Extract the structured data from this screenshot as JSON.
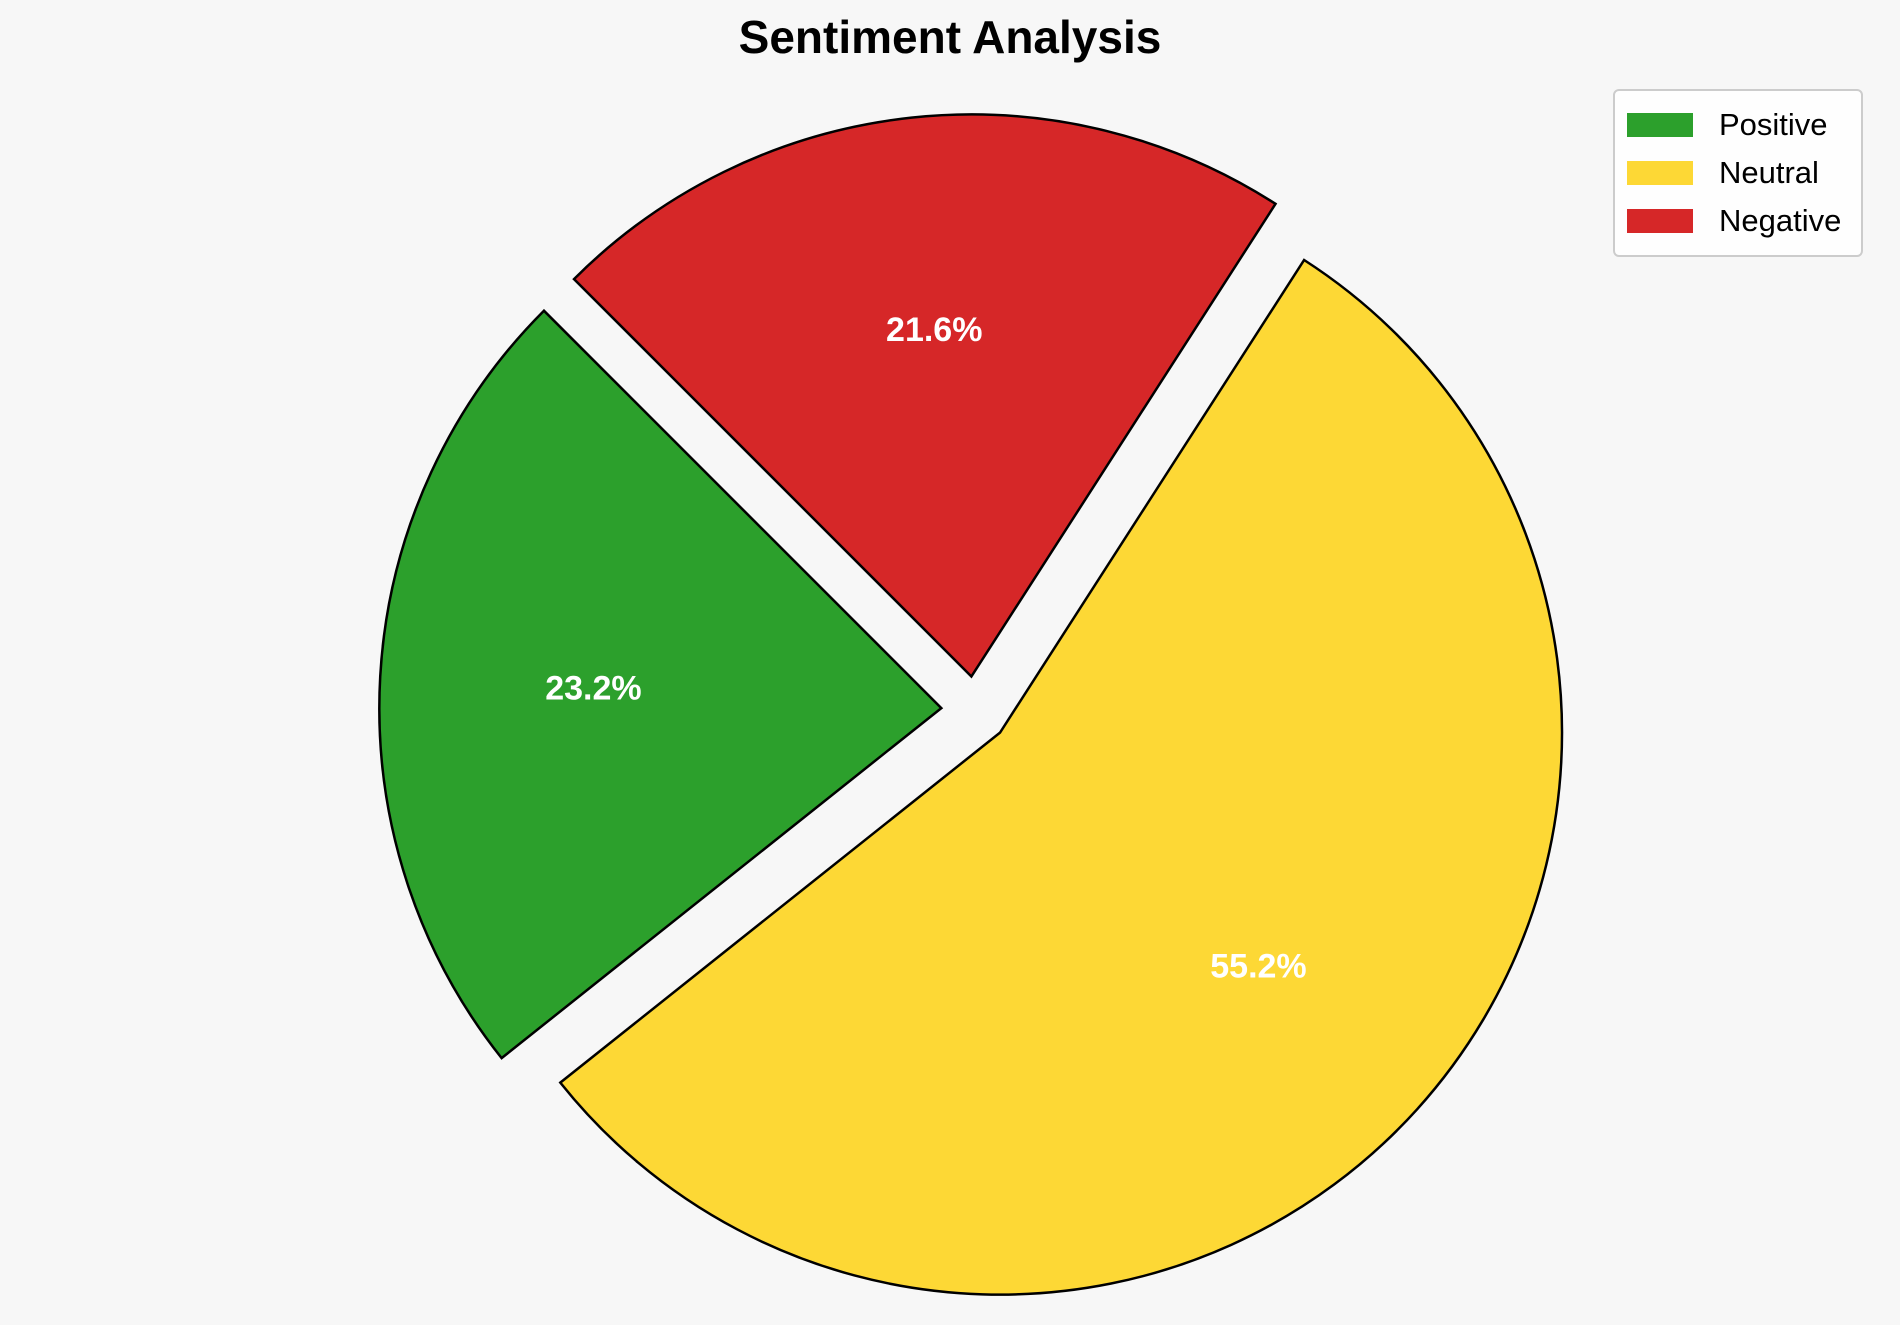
{
  "chart_data": {
    "type": "pie",
    "title": "Sentiment Analysis",
    "categories": [
      "Positive",
      "Neutral",
      "Negative"
    ],
    "values": [
      23.2,
      55.2,
      21.6
    ],
    "labels": [
      "23.2%",
      "55.2%",
      "21.6%"
    ],
    "colors": [
      "#2ca02c",
      "#fdd835",
      "#d62728"
    ],
    "exploded": true,
    "edge_color": "#000000",
    "label_color": "#ffffff",
    "legend": {
      "position": "top-right",
      "entries": [
        "Positive",
        "Neutral",
        "Negative"
      ]
    }
  }
}
